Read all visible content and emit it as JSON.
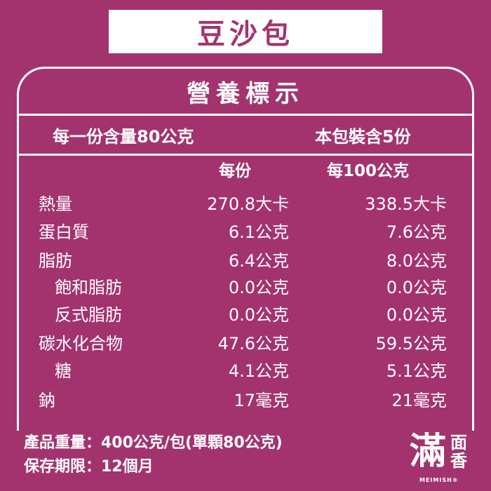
{
  "title": "豆沙包",
  "panel_title": "營養標示",
  "serving_size": "每一份含量80公克",
  "servings": "本包裝含5份",
  "col_per_serving": "每份",
  "col_per_100g": "每100公克",
  "rows": [
    {
      "label": "熱量",
      "per_serving": "270.8大卡",
      "per_100g": "338.5大卡",
      "indent": 0
    },
    {
      "label": "蛋白質",
      "per_serving": "6.1公克",
      "per_100g": "7.6公克",
      "indent": 0
    },
    {
      "label": "脂肪",
      "per_serving": "6.4公克",
      "per_100g": "8.0公克",
      "indent": 0
    },
    {
      "label": "飽和脂肪",
      "per_serving": "0.0公克",
      "per_100g": "0.0公克",
      "indent": 1
    },
    {
      "label": "反式脂肪",
      "per_serving": "0.0公克",
      "per_100g": "0.0公克",
      "indent": 1
    },
    {
      "label": "碳水化合物",
      "per_serving": "47.6公克",
      "per_100g": "59.5公克",
      "indent": 0
    },
    {
      "label": "糖",
      "per_serving": "4.1公克",
      "per_100g": "5.1公克",
      "indent": 2
    },
    {
      "label": "鈉",
      "per_serving": "17毫克",
      "per_100g": "21毫克",
      "indent": 0
    }
  ],
  "footer": {
    "weight": "產品重量：400公克/包(單顆80公克)",
    "shelf_life": "保存期限：12個月"
  },
  "logo": {
    "text": "滿",
    "text2": "面香",
    "brand": "MEIMISH®"
  },
  "colors": {
    "background": "#a3336f",
    "foreground": "#ffffff"
  }
}
